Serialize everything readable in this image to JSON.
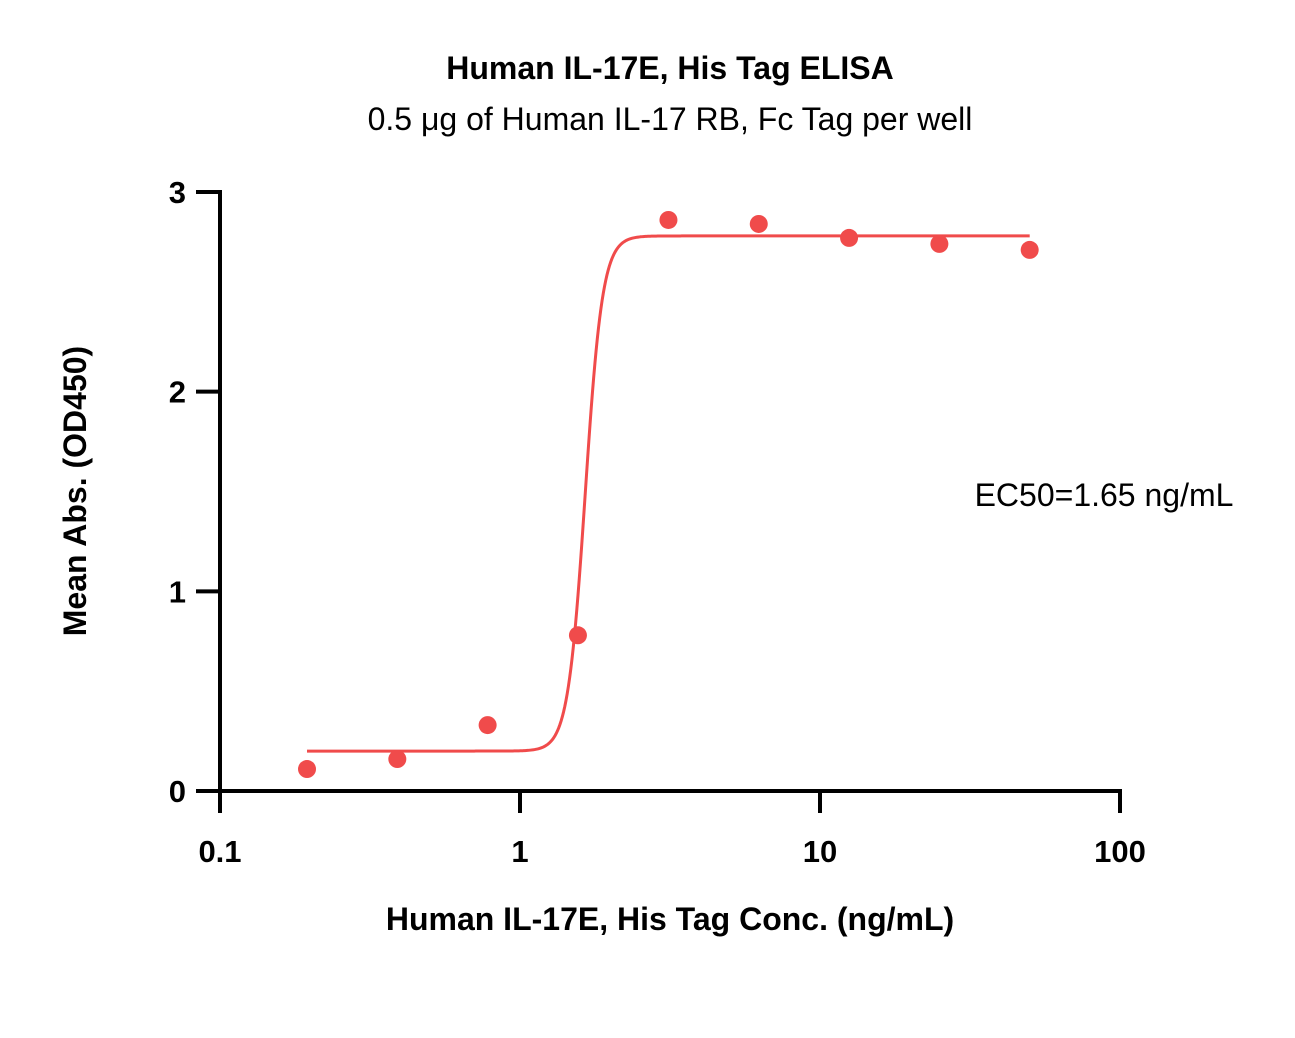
{
  "chart_data": {
    "type": "scatter",
    "title": "Human IL-17E, His Tag ELISA",
    "subtitle": "0.5 μg of Human IL-17 RB, Fc Tag per well",
    "xlabel": "Human IL-17E, His Tag Conc. (ng/mL)",
    "ylabel": "Mean Abs. (OD450)",
    "x_scale": "log",
    "xlim": [
      0.1,
      100
    ],
    "ylim": [
      0,
      3
    ],
    "x_ticks": [
      0.1,
      1,
      10,
      100
    ],
    "x_tick_labels": [
      "0.1",
      "1",
      "10",
      "100"
    ],
    "y_ticks": [
      0,
      1,
      2,
      3
    ],
    "y_tick_labels": [
      "0",
      "1",
      "2",
      "3"
    ],
    "grid": false,
    "color": "#f04b4b",
    "series": [
      {
        "x": [
          0.195,
          0.39,
          0.78,
          1.56,
          3.125,
          6.25,
          12.5,
          25,
          50
        ],
        "y": [
          0.11,
          0.16,
          0.33,
          0.78,
          2.86,
          2.84,
          2.77,
          2.74,
          2.71
        ]
      }
    ],
    "fit": {
      "type": "4PL",
      "bottom": 0.2,
      "top": 2.78,
      "ec50": 1.65,
      "hill": 15,
      "x_range": [
        0.195,
        50
      ]
    },
    "annotation": "EC50=1.65 ng/mL"
  }
}
